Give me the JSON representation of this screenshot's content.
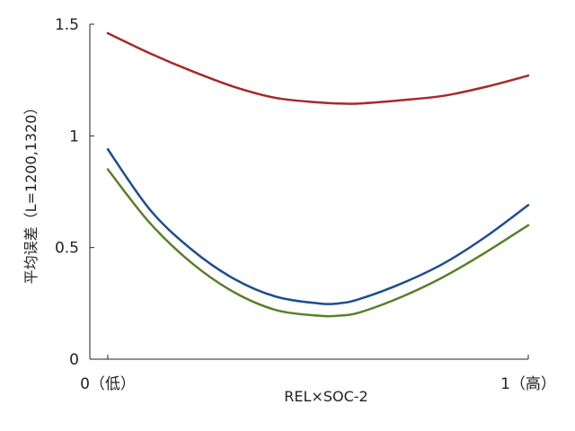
{
  "chart_data": {
    "type": "line",
    "title": "",
    "xlabel": "REL×SOC-2",
    "ylabel": "平均误差（L=1200,1320）",
    "xlim": [
      0,
      1
    ],
    "ylim": [
      0,
      1.5
    ],
    "x_ticks": [
      {
        "value": 0,
        "label": "0（低）"
      },
      {
        "value": 1,
        "label": "1（高）"
      }
    ],
    "y_ticks": [
      {
        "value": 0,
        "label": "0"
      },
      {
        "value": 0.5,
        "label": "0.5"
      },
      {
        "value": 1,
        "label": "1"
      },
      {
        "value": 1.5,
        "label": "1.5"
      }
    ],
    "grid": false,
    "legend": "none",
    "x": [
      0,
      0.1,
      0.2,
      0.3,
      0.4,
      0.5,
      0.55,
      0.6,
      0.7,
      0.8,
      0.9,
      1.0
    ],
    "series": [
      {
        "color": "#a52a2a",
        "values": [
          1.46,
          1.37,
          1.29,
          1.22,
          1.17,
          1.15,
          1.145,
          1.145,
          1.16,
          1.18,
          1.22,
          1.27
        ]
      },
      {
        "color": "#1f4e8c",
        "values": [
          0.94,
          0.67,
          0.49,
          0.36,
          0.28,
          0.25,
          0.25,
          0.27,
          0.34,
          0.43,
          0.55,
          0.69
        ]
      },
      {
        "color": "#5a7f2b",
        "values": [
          0.85,
          0.61,
          0.43,
          0.3,
          0.22,
          0.195,
          0.195,
          0.21,
          0.28,
          0.37,
          0.48,
          0.6
        ]
      }
    ]
  }
}
